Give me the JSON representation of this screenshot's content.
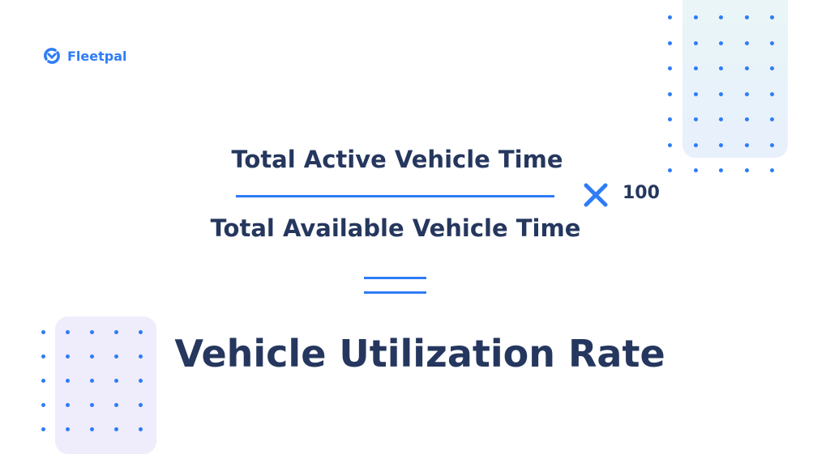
{
  "brand": {
    "name": "Fleetpal",
    "icon": "fleetpal-logo-icon",
    "color": "#2f7cf6"
  },
  "formula": {
    "numerator": "Total Active Vehicle Time",
    "denominator": "Total Available Vehicle Time",
    "operator_icon": "multiply-icon",
    "multiplier": "100",
    "equals_icon": "equals-icon"
  },
  "result_title": "Vehicle Utilization Rate",
  "colors": {
    "accent": "#2f7cf6",
    "text": "#25375e",
    "panel_top": "#e9f3f8",
    "panel_bottom": "#efecfb"
  }
}
